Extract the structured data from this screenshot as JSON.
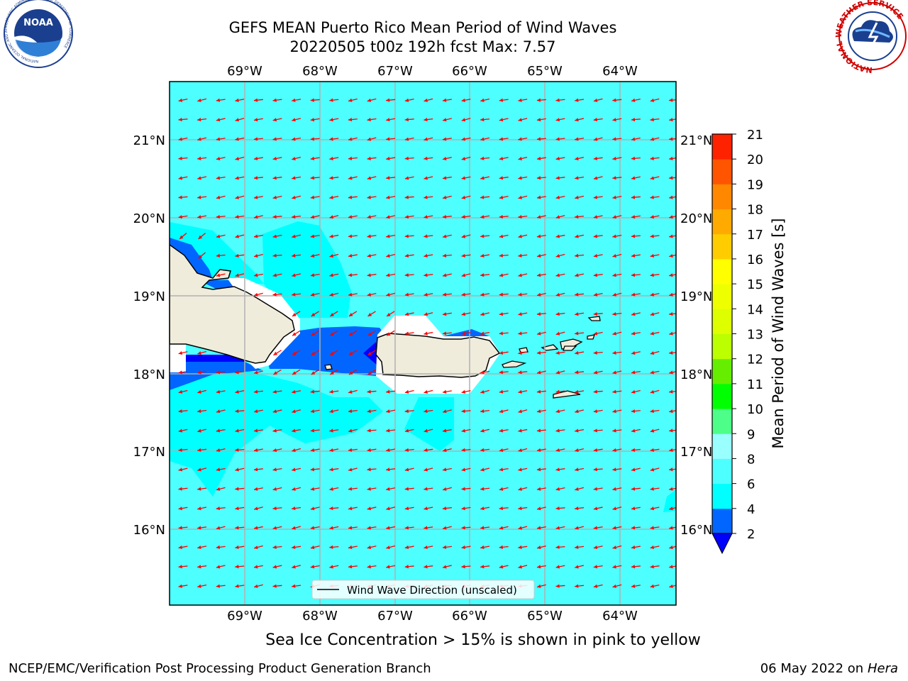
{
  "title": {
    "line1": "GEFS MEAN Puerto Rico Mean Period of Wind Waves",
    "line2": "20220505 t00z 192h fcst   Max: 7.57"
  },
  "subtitle": "Sea Ice Concentration > 15% is shown in pink to yellow",
  "footer": {
    "left": "NCEP/EMC/Verification Post Processing Product Generation Branch",
    "right_date": "06 May 2022 on",
    "right_host": "Hera"
  },
  "map": {
    "lon_range": [
      -70.0,
      -63.25
    ],
    "lat_range": [
      15.0,
      21.75
    ],
    "lon_ticks": [
      "69°W",
      "68°W",
      "67°W",
      "66°W",
      "65°W",
      "64°W"
    ],
    "lat_ticks": [
      "21°N",
      "20°N",
      "19°N",
      "18°N",
      "17°N",
      "16°N"
    ],
    "legend_label": "Wind Wave Direction (unscaled)",
    "arrow_color": "#ff0000",
    "land_color": "#efecdc",
    "ocean_base_color": "#4dffff"
  },
  "colorbar": {
    "label": "Mean Period of Wind Waves [s]",
    "tick_labels": [
      "2",
      "4",
      "6",
      "8",
      "9",
      "10",
      "11",
      "12",
      "13",
      "14",
      "15",
      "16",
      "17",
      "18",
      "19",
      "20",
      "21"
    ],
    "band_colors": [
      "#0066ff",
      "#00ffff",
      "#4dffff",
      "#99ffff",
      "#4dff88",
      "#00ff00",
      "#66ee00",
      "#bbff00",
      "#ddff00",
      "#eeff00",
      "#ffff00",
      "#ffcc00",
      "#ffaa00",
      "#ff8800",
      "#ff5500",
      "#ff2200"
    ],
    "under_color": "#0000ff"
  },
  "logos": {
    "noaa_text": "NOAA",
    "noaa_ring_text": "NATIONAL OCEANIC AND ATMOSPHERIC ADMINISTRATION · U.S. DEPARTMENT OF COMMERCE",
    "nws_ring_text": "NATIONAL WEATHER SERVICE"
  }
}
